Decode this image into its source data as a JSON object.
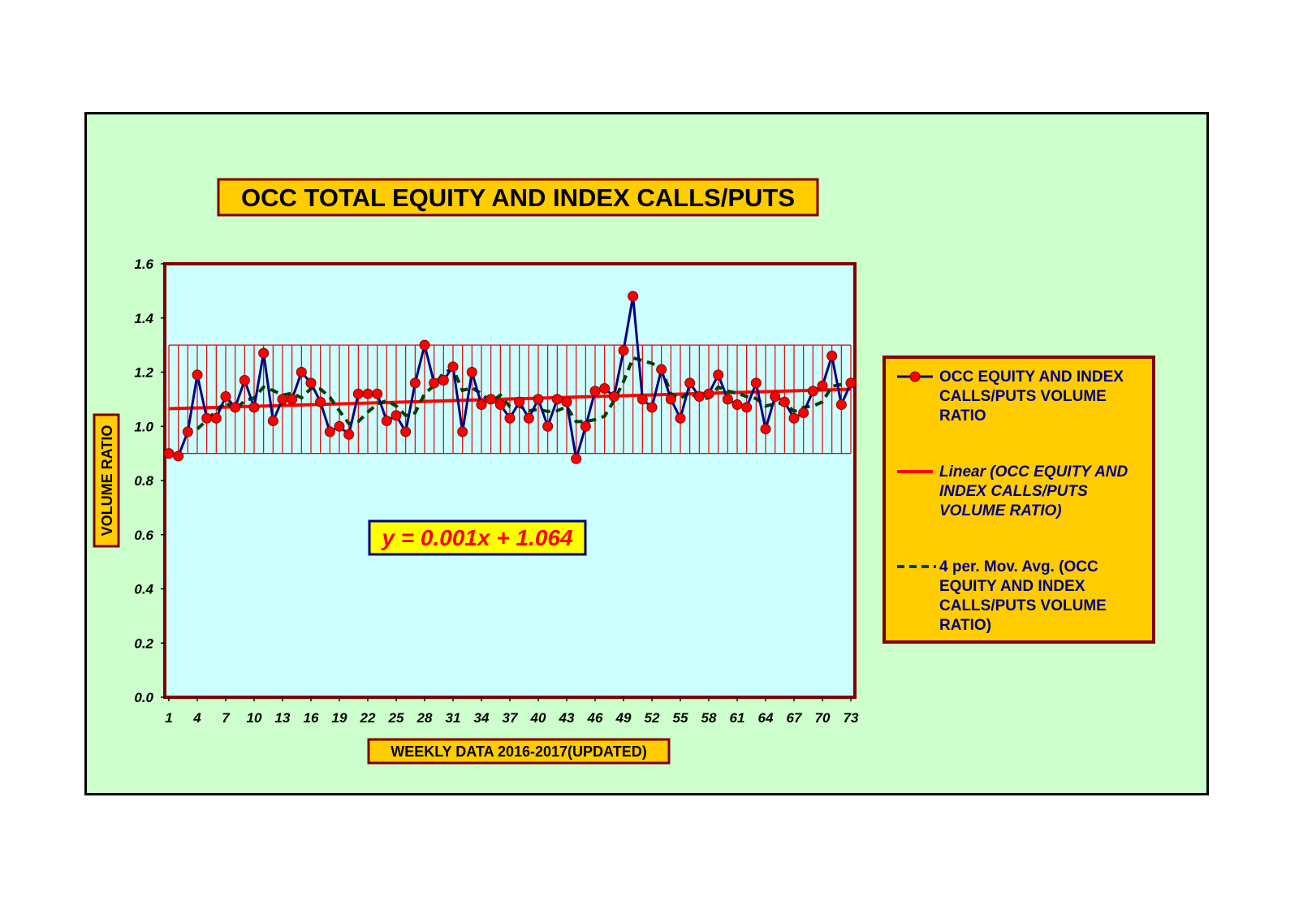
{
  "chart_data": {
    "type": "line",
    "title": "OCC TOTAL EQUITY AND INDEX CALLS/PUTS",
    "xlabel": "WEEKLY DATA 2016-2017(UPDATED)",
    "ylabel": "VOLUME RATIO",
    "ylim": [
      0,
      1.6
    ],
    "y_ticks": [
      "0.0",
      "0.2",
      "0.4",
      "0.6",
      "0.8",
      "1.0",
      "1.2",
      "1.4",
      "1.6"
    ],
    "x_ticks": [
      "1",
      "4",
      "7",
      "10",
      "13",
      "16",
      "19",
      "22",
      "25",
      "28",
      "31",
      "34",
      "37",
      "40",
      "43",
      "46",
      "49",
      "52",
      "55",
      "58",
      "61",
      "64",
      "67",
      "70",
      "73"
    ],
    "x_range": [
      1,
      73
    ],
    "x": [
      1,
      2,
      3,
      4,
      5,
      6,
      7,
      8,
      9,
      10,
      11,
      12,
      13,
      14,
      15,
      16,
      17,
      18,
      19,
      20,
      21,
      22,
      23,
      24,
      25,
      26,
      27,
      28,
      29,
      30,
      31,
      32,
      33,
      34,
      35,
      36,
      37,
      38,
      39,
      40,
      41,
      42,
      43,
      44,
      45,
      46,
      47,
      48,
      49,
      50,
      51,
      52,
      53,
      54,
      55,
      56,
      57,
      58,
      59,
      60,
      61,
      62,
      63,
      64,
      65,
      66,
      67,
      68,
      69,
      70,
      71,
      72,
      73
    ],
    "series": [
      {
        "name": "OCC EQUITY AND INDEX CALLS/PUTS VOLUME RATIO",
        "color": "#000080",
        "marker_color": "#ff0000",
        "values": [
          0.9,
          0.89,
          0.98,
          1.19,
          1.03,
          1.03,
          1.11,
          1.07,
          1.17,
          1.07,
          1.27,
          1.02,
          1.1,
          1.1,
          1.2,
          1.16,
          1.09,
          0.98,
          1.0,
          0.97,
          1.12,
          1.12,
          1.12,
          1.02,
          1.04,
          0.98,
          1.16,
          1.3,
          1.16,
          1.17,
          1.22,
          0.98,
          1.2,
          1.08,
          1.1,
          1.08,
          1.03,
          1.09,
          1.03,
          1.1,
          1.0,
          1.1,
          1.09,
          0.88,
          1.0,
          1.13,
          1.14,
          1.11,
          1.28,
          1.48,
          1.1,
          1.07,
          1.21,
          1.1,
          1.03,
          1.16,
          1.11,
          1.12,
          1.19,
          1.1,
          1.08,
          1.07,
          1.16,
          0.99,
          1.11,
          1.09,
          1.03,
          1.05,
          1.13,
          1.15,
          1.26,
          1.08,
          1.16
        ]
      },
      {
        "name": "Linear (OCC EQUITY AND INDEX CALLS/PUTS VOLUME RATIO)",
        "color": "#ff0000",
        "type": "trendline",
        "slope": 0.001,
        "intercept": 1.064
      },
      {
        "name": "4 per. Mov. Avg. (OCC EQUITY AND INDEX CALLS/PUTS VOLUME RATIO)",
        "color": "#004000",
        "type": "moving_average",
        "period": 4
      }
    ],
    "error_band": {
      "low": 0.9,
      "high": 1.3,
      "color": "#e00000"
    },
    "equation": "y = 0.001x + 1.064",
    "legend": [
      "OCC EQUITY AND INDEX CALLS/PUTS VOLUME RATIO",
      "Linear (OCC EQUITY AND INDEX CALLS/PUTS VOLUME RATIO)",
      "4 per. Mov. Avg. (OCC EQUITY AND INDEX CALLS/PUTS VOLUME RATIO)"
    ],
    "legend_placement": "right",
    "grid": false,
    "colors": {
      "chart_background": "#ccffcc",
      "plot_background": "#ccffff",
      "plot_border": "#800000",
      "label_box": "#ffcc00",
      "equation_box": "#ffff00",
      "equation_border": "#000080",
      "equation_text": "#ff0000"
    }
  }
}
